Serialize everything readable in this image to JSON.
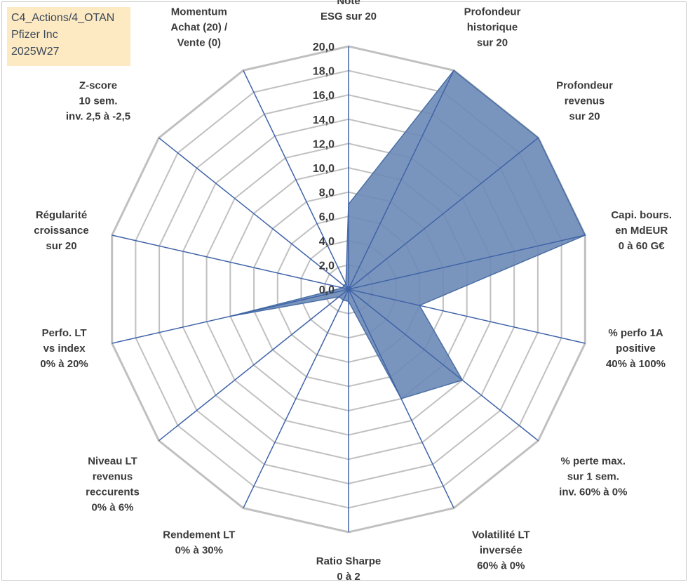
{
  "header": {
    "line1": "C4_Actions/4_OTAN",
    "line2": "Pfizer Inc",
    "line3": "2025W27"
  },
  "chart_data": {
    "type": "radar",
    "rmin": 0,
    "rmax": 20,
    "tick_step": 2,
    "grid": true,
    "tick_labels": [
      "0,0",
      "2,0",
      "4,0",
      "6,0",
      "8,0",
      "10,0",
      "12,0",
      "14,0",
      "16,0",
      "18,0",
      "20,0"
    ],
    "axes": [
      [
        "Note",
        "ESG sur 20"
      ],
      [
        "Profondeur",
        "historique",
        "sur 20"
      ],
      [
        "Profondeur",
        "revenus",
        "sur 20"
      ],
      [
        "Capi. bours.",
        "en MdEUR",
        "0 à 60 G€"
      ],
      [
        "% perfo 1A",
        "positive",
        "40% à 100%"
      ],
      [
        "% perte max.",
        "sur 1 sem.",
        "inv. 60% à 0%"
      ],
      [
        "Volatilité LT",
        "inversée",
        "60% à 0%"
      ],
      [
        "Ratio Sharpe",
        "0 à 2"
      ],
      [
        "Rendement LT",
        "0% à 30%"
      ],
      [
        "Niveau LT",
        "revenus",
        "reccurents",
        "0% à 6%"
      ],
      [
        "Perfo. LT",
        "vs index",
        "0% à 20%"
      ],
      [
        "Régularité",
        "croissance",
        "sur 20"
      ],
      [
        "Z-score",
        "10 sem.",
        "inv. 2,5 à -2,5"
      ],
      [
        "Momentum",
        "Achat (20) /",
        "Vente (0)"
      ]
    ],
    "series": [
      {
        "values": [
          7,
          20,
          20,
          20,
          6,
          12,
          10,
          1,
          1,
          1,
          10,
          0.5,
          0.5,
          0.5
        ],
        "color": "#5b7fab"
      }
    ],
    "colors": {
      "grid": "#c0c0c0",
      "axis": "#3f63a8",
      "fill": "#6b8ab6",
      "stroke": "#4a6fa5"
    }
  }
}
